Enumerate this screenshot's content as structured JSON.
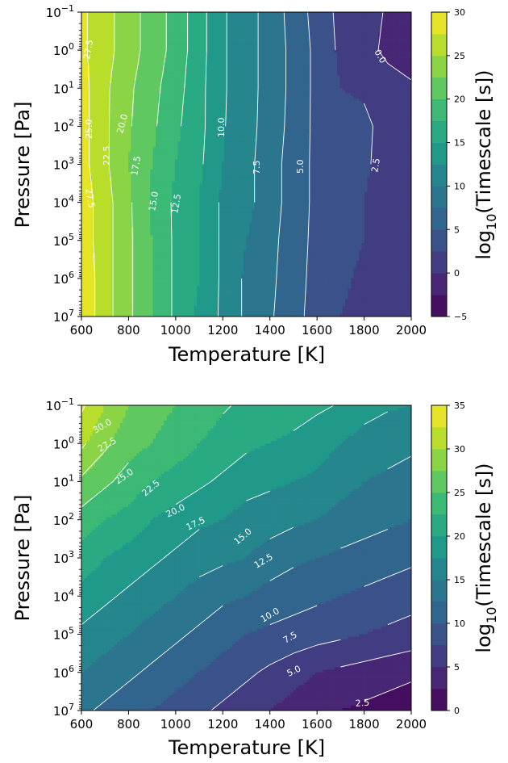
{
  "chart_data": [
    {
      "type": "contour",
      "xlabel": "Temperature [K]",
      "ylabel": "Pressure [Pa]",
      "colorbar_label": "log10(Timescale [s])",
      "colormap": "viridis",
      "y_scale": "log",
      "y_inverted": true,
      "xlim": [
        600,
        2000
      ],
      "ylim_log10": [
        -1,
        7
      ],
      "x_ticks": [
        "600",
        "800",
        "1000",
        "1200",
        "1400",
        "1600",
        "1800",
        "2000"
      ],
      "y_ticks": [
        {
          "base": "10",
          "exp": "−1"
        },
        {
          "base": "10",
          "exp": "0"
        },
        {
          "base": "10",
          "exp": "1"
        },
        {
          "base": "10",
          "exp": "2"
        },
        {
          "base": "10",
          "exp": "3"
        },
        {
          "base": "10",
          "exp": "4"
        },
        {
          "base": "10",
          "exp": "5"
        },
        {
          "base": "10",
          "exp": "6"
        },
        {
          "base": "10",
          "exp": "7"
        }
      ],
      "colorbar_range": [
        -5,
        30
      ],
      "colorbar_ticks": [
        "−5",
        "0",
        "5",
        "10",
        "15",
        "20",
        "25",
        "30"
      ],
      "level_step": 2.5,
      "grid_T": [
        600,
        700,
        800,
        900,
        1000,
        1100,
        1200,
        1300,
        1400,
        1500,
        1600,
        1700,
        1800,
        1900,
        2000
      ],
      "grid_log10P": [
        -1,
        0,
        1,
        2,
        3,
        4,
        5,
        6,
        7
      ],
      "values": [
        [
          28.0,
          26.0,
          23.5,
          21.5,
          19.0,
          16.0,
          12.8,
          11.0,
          9.0,
          6.5,
          4.0,
          1.8,
          0.8,
          -0.2,
          -1.5
        ],
        [
          28.0,
          26.0,
          23.5,
          21.5,
          19.0,
          16.0,
          12.8,
          11.0,
          9.0,
          6.8,
          4.3,
          2.0,
          1.2,
          -0.8,
          -1.8
        ],
        [
          28.5,
          25.5,
          23.0,
          20.8,
          18.5,
          15.8,
          12.8,
          11.0,
          9.0,
          6.8,
          4.3,
          2.5,
          2.3,
          1.5,
          0.5
        ],
        [
          28.5,
          25.5,
          22.8,
          20.5,
          18.0,
          15.8,
          12.7,
          11.0,
          8.8,
          6.7,
          4.3,
          3.0,
          2.8,
          2.0,
          1.0
        ],
        [
          28.5,
          25.5,
          22.5,
          20.0,
          17.5,
          15.5,
          12.5,
          10.8,
          8.5,
          6.5,
          4.3,
          3.0,
          2.7,
          2.0,
          1.0
        ],
        [
          29.0,
          26.0,
          23.0,
          19.5,
          17.0,
          15.0,
          12.0,
          10.8,
          8.5,
          6.5,
          4.3,
          3.0,
          2.5,
          1.9,
          1.0
        ],
        [
          29.0,
          26.0,
          23.0,
          20.0,
          17.0,
          15.0,
          12.0,
          10.0,
          8.2,
          6.3,
          4.2,
          3.0,
          2.5,
          2.0,
          1.0
        ],
        [
          29.5,
          26.0,
          23.0,
          20.0,
          17.0,
          15.0,
          12.0,
          9.5,
          8.0,
          6.2,
          4.0,
          2.8,
          2.2,
          1.7,
          1.0
        ],
        [
          29.5,
          26.0,
          23.0,
          20.0,
          17.0,
          14.5,
          12.0,
          9.5,
          7.8,
          6.0,
          3.8,
          2.5,
          2.0,
          1.5,
          1.0
        ]
      ],
      "contour_labels": [
        "27.5",
        "25.0",
        "22.5",
        "20.0",
        "17.5",
        "15.0",
        "12.5",
        "10.0",
        "7.5",
        "5.0",
        "2.5",
        "0.0",
        "27.5"
      ]
    },
    {
      "type": "contour",
      "xlabel": "Temperature [K]",
      "ylabel": "Pressure [Pa]",
      "colorbar_label": "log10(Timescale [s])",
      "colormap": "viridis",
      "y_scale": "log",
      "y_inverted": true,
      "xlim": [
        600,
        2000
      ],
      "ylim_log10": [
        -1,
        7
      ],
      "x_ticks": [
        "600",
        "800",
        "1000",
        "1200",
        "1400",
        "1600",
        "1800",
        "2000"
      ],
      "y_ticks": [
        {
          "base": "10",
          "exp": "−1"
        },
        {
          "base": "10",
          "exp": "0"
        },
        {
          "base": "10",
          "exp": "1"
        },
        {
          "base": "10",
          "exp": "2"
        },
        {
          "base": "10",
          "exp": "3"
        },
        {
          "base": "10",
          "exp": "4"
        },
        {
          "base": "10",
          "exp": "5"
        },
        {
          "base": "10",
          "exp": "6"
        },
        {
          "base": "10",
          "exp": "7"
        }
      ],
      "colorbar_range": [
        0,
        35
      ],
      "colorbar_ticks": [
        "0",
        "5",
        "10",
        "15",
        "20",
        "25",
        "30",
        "35"
      ],
      "level_step": 2.5,
      "grid_T": [
        600,
        700,
        800,
        900,
        1000,
        1100,
        1200,
        1300,
        1400,
        1500,
        1600,
        1700,
        1800,
        1900,
        2000
      ],
      "grid_log10P": [
        -1,
        0,
        1,
        2,
        3,
        4,
        5,
        6,
        7
      ],
      "values": [
        [
          33.0,
          30.0,
          27.5,
          26.0,
          25.0,
          24.0,
          22.8,
          22.0,
          21.5,
          21.0,
          20.5,
          19.8,
          18.5,
          17.8,
          17.5
        ],
        [
          30.5,
          28.0,
          26.0,
          25.0,
          23.8,
          22.5,
          21.5,
          20.5,
          20.0,
          19.5,
          18.5,
          17.5,
          16.5,
          16.0,
          15.5
        ],
        [
          27.0,
          25.5,
          24.0,
          22.5,
          21.5,
          20.5,
          19.5,
          18.5,
          18.0,
          17.5,
          17.0,
          16.0,
          15.0,
          14.5,
          14.0
        ],
        [
          24.0,
          22.5,
          21.5,
          20.0,
          19.0,
          18.0,
          17.5,
          16.5,
          16.0,
          15.5,
          15.0,
          14.0,
          13.5,
          13.0,
          12.5
        ],
        [
          21.5,
          20.0,
          19.0,
          18.0,
          17.0,
          16.0,
          15.5,
          15.0,
          14.0,
          13.0,
          12.5,
          12.0,
          11.5,
          11.0,
          10.5
        ],
        [
          19.0,
          18.0,
          17.0,
          16.0,
          15.0,
          14.0,
          13.0,
          12.5,
          11.5,
          11.0,
          10.5,
          10.0,
          9.5,
          9.0,
          8.5
        ],
        [
          17.0,
          16.0,
          15.0,
          14.0,
          13.0,
          12.0,
          11.0,
          10.0,
          9.5,
          9.0,
          8.5,
          8.0,
          7.5,
          7.0,
          6.5
        ],
        [
          15.0,
          14.0,
          13.0,
          12.0,
          11.0,
          10.0,
          9.0,
          8.0,
          7.0,
          6.0,
          5.0,
          4.5,
          4.0,
          3.5,
          3.0
        ],
        [
          13.0,
          12.0,
          11.0,
          10.0,
          9.0,
          8.0,
          7.0,
          6.0,
          5.0,
          4.0,
          3.0,
          2.5,
          2.0,
          1.5,
          1.0
        ]
      ],
      "contour_labels": [
        "30.0",
        "27.5",
        "25.0",
        "22.5",
        "20.0",
        "17.5",
        "15.0",
        "12.5",
        "10.0",
        "7.5",
        "5.0",
        "2.5"
      ]
    }
  ]
}
